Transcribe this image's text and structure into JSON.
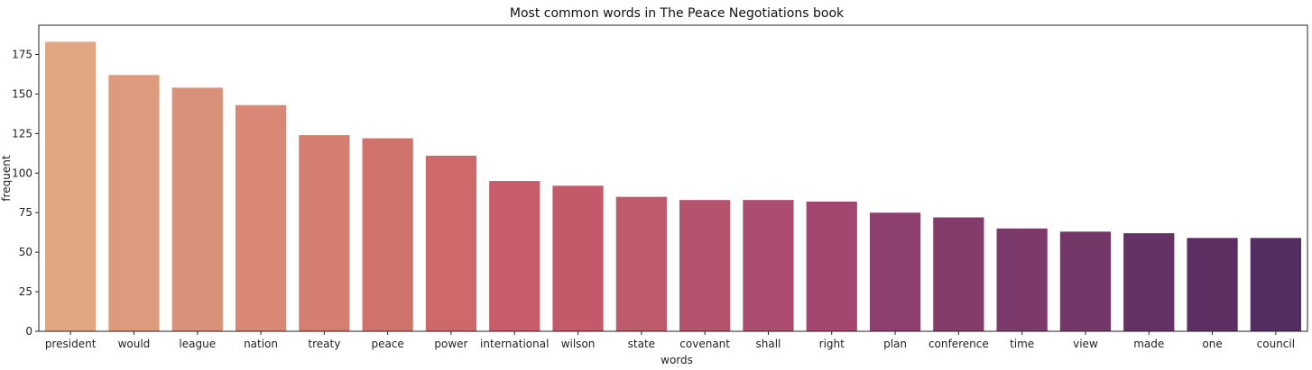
{
  "chart_data": {
    "type": "bar",
    "title": "Most common words in The Peace Negotiations book",
    "xlabel": "words",
    "ylabel": "frequent",
    "categories": [
      "president",
      "would",
      "league",
      "nation",
      "treaty",
      "peace",
      "power",
      "international",
      "wilson",
      "state",
      "covenant",
      "shall",
      "right",
      "plan",
      "conference",
      "time",
      "view",
      "made",
      "one",
      "council"
    ],
    "values": [
      183,
      162,
      154,
      143,
      124,
      122,
      111,
      95,
      92,
      85,
      83,
      83,
      82,
      75,
      72,
      65,
      63,
      62,
      59,
      59
    ],
    "ylim": [
      0,
      193.5
    ],
    "yticks": [
      0,
      25,
      50,
      75,
      100,
      125,
      150,
      175
    ],
    "grid": false,
    "legend": "none",
    "colors": [
      "#e0a782",
      "#dd9a7c",
      "#d99279",
      "#d88875",
      "#d47e70",
      "#d0736d",
      "#cd686b",
      "#c85c6a",
      "#c35969",
      "#be5b6b",
      "#b4536e",
      "#ab4c70",
      "#a34670",
      "#8d406d",
      "#843d6b",
      "#7c3a6a",
      "#733768",
      "#653265",
      "#5d2e62",
      "#542e60"
    ]
  }
}
